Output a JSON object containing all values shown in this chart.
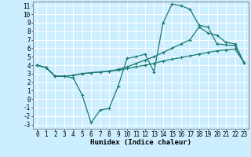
{
  "title": "",
  "xlabel": "Humidex (Indice chaleur)",
  "bg_color": "#cceeff",
  "grid_color": "#ffffff",
  "line_color": "#1a7a6e",
  "xlim": [
    -0.5,
    23.5
  ],
  "ylim": [
    -3.5,
    11.5
  ],
  "xticks": [
    0,
    1,
    2,
    3,
    4,
    5,
    6,
    7,
    8,
    9,
    10,
    11,
    12,
    13,
    14,
    15,
    16,
    17,
    18,
    19,
    20,
    21,
    22,
    23
  ],
  "yticks": [
    -3,
    -2,
    -1,
    0,
    1,
    2,
    3,
    4,
    5,
    6,
    7,
    8,
    9,
    10,
    11
  ],
  "line1_x": [
    0,
    1,
    2,
    3,
    4,
    5,
    6,
    7,
    8,
    9,
    10,
    11,
    12,
    13,
    14,
    15,
    16,
    17,
    18,
    19,
    20,
    21,
    22,
    23
  ],
  "line1_y": [
    4.0,
    3.7,
    2.7,
    2.7,
    2.5,
    0.5,
    -2.8,
    -1.3,
    -1.1,
    1.5,
    4.8,
    5.0,
    5.3,
    3.2,
    9.0,
    11.2,
    11.0,
    10.6,
    8.7,
    8.5,
    6.5,
    6.4,
    6.3,
    4.3
  ],
  "line2_x": [
    0,
    1,
    2,
    3,
    4,
    5,
    6,
    7,
    8,
    9,
    10,
    11,
    12,
    13,
    14,
    15,
    16,
    17,
    18,
    19,
    20,
    21,
    22,
    23
  ],
  "line2_y": [
    4.0,
    3.7,
    2.7,
    2.7,
    2.8,
    3.0,
    3.1,
    3.2,
    3.3,
    3.4,
    3.6,
    3.8,
    4.0,
    4.2,
    4.5,
    4.7,
    4.9,
    5.1,
    5.3,
    5.5,
    5.7,
    5.8,
    5.9,
    4.3
  ],
  "line3_x": [
    0,
    1,
    2,
    3,
    4,
    5,
    6,
    7,
    8,
    9,
    10,
    11,
    12,
    13,
    14,
    15,
    16,
    17,
    18,
    19,
    20,
    21,
    22,
    23
  ],
  "line3_y": [
    4.0,
    3.7,
    2.7,
    2.7,
    2.8,
    3.0,
    3.1,
    3.2,
    3.3,
    3.5,
    3.8,
    4.2,
    4.6,
    5.0,
    5.5,
    6.0,
    6.5,
    7.0,
    8.5,
    7.8,
    7.5,
    6.7,
    6.5,
    4.3
  ],
  "tick_fontsize": 5.5,
  "xlabel_fontsize": 6.5
}
